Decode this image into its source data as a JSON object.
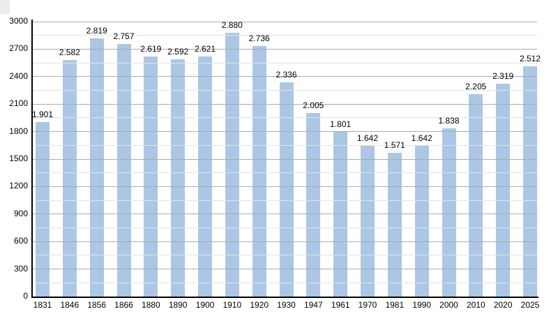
{
  "page": {
    "background_color": "#ffffff",
    "corner_artifact_color": "#ededed"
  },
  "chart_data": {
    "type": "bar",
    "title": "",
    "xlabel": "",
    "ylabel": "",
    "legend": "none",
    "grid": "on",
    "categories": [
      "1831",
      "1846",
      "1856",
      "1866",
      "1880",
      "1890",
      "1900",
      "1910",
      "1920",
      "1930",
      "1947",
      "1961",
      "1970",
      "1981",
      "1990",
      "2000",
      "2010",
      "2020",
      "2025"
    ],
    "values": [
      1901,
      2582,
      2819,
      2757,
      2619,
      2592,
      2621,
      2880,
      2736,
      2336,
      2005,
      1801,
      1642,
      1571,
      1642,
      1838,
      2205,
      2319,
      2512
    ],
    "value_labels": [
      "1.901",
      "2.582",
      "2.819",
      "2.757",
      "2.619",
      "2.592",
      "2.621",
      "2.880",
      "2.736",
      "2.336",
      "2.005",
      "1.801",
      "1.642",
      "1.571",
      "1.642",
      "1.838",
      "2.205",
      "2.319",
      "2.512"
    ],
    "ylim": [
      0,
      3000
    ],
    "y_major_step": 300,
    "y_minor_step": 150,
    "y_tick_labels": [
      "0",
      "300",
      "600",
      "900",
      "1200",
      "1500",
      "1800",
      "2100",
      "2400",
      "2700",
      "3000"
    ],
    "bar_color": "#abc7e5",
    "grid_major_color": "#ababab",
    "grid_minor_color": "#e4e4e4",
    "axis_color": "#000000",
    "text_color": "#000000"
  }
}
